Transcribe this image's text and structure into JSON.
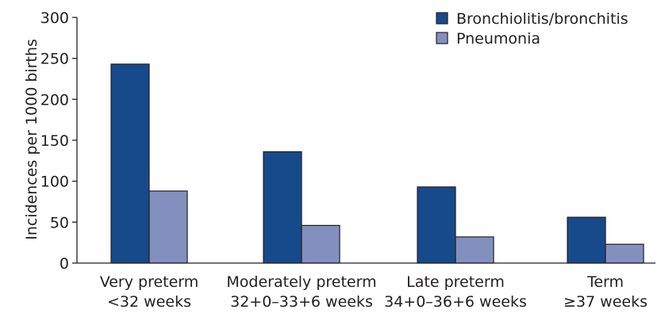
{
  "chart_data": {
    "type": "bar",
    "title": "",
    "xlabel": "",
    "ylabel": "Incidences per 1000 births",
    "ylim": [
      0,
      300
    ],
    "yticks": [
      0,
      50,
      100,
      150,
      200,
      250,
      300
    ],
    "grid": false,
    "legend_position": "top-right",
    "categories": [
      [
        "Very preterm",
        "<32 weeks"
      ],
      [
        "Moderately preterm",
        "32+0–33+6 weeks"
      ],
      [
        "Late preterm",
        "34+0–36+6 weeks"
      ],
      [
        "Term",
        "≥37 weeks"
      ]
    ],
    "series": [
      {
        "name": "Bronchiolitis/bronchitis",
        "color": "#174a8b",
        "values": [
          243,
          136,
          93,
          56
        ]
      },
      {
        "name": "Pneumonia",
        "color": "#8390bf",
        "values": [
          88,
          46,
          32,
          23
        ]
      }
    ]
  }
}
